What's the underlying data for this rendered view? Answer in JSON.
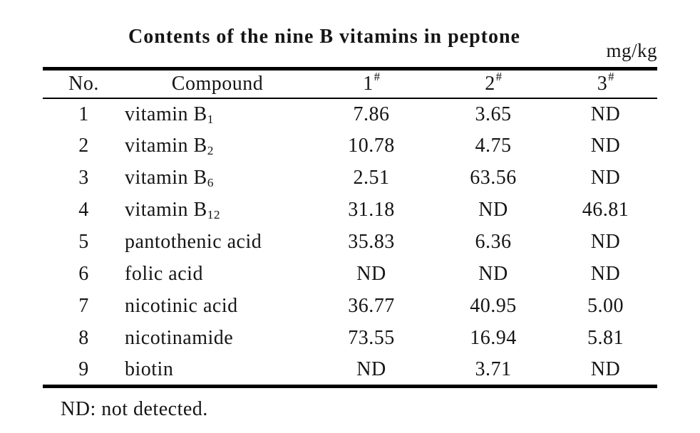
{
  "page": {
    "title": "Contents of the nine B vitamins in peptone",
    "unit": "mg/kg",
    "footnote": "ND: not detected."
  },
  "table": {
    "columns": [
      {
        "label": "No.",
        "sup": ""
      },
      {
        "label": "Compound",
        "sup": ""
      },
      {
        "label": "1",
        "sup": "#"
      },
      {
        "label": "2",
        "sup": "#"
      },
      {
        "label": "3",
        "sup": "#"
      }
    ],
    "rows": [
      {
        "no": "1",
        "compound": {
          "name": "vitamin B",
          "sub": "1"
        },
        "values": [
          "7.86",
          "3.65",
          "ND"
        ]
      },
      {
        "no": "2",
        "compound": {
          "name": "vitamin B",
          "sub": "2"
        },
        "values": [
          "10.78",
          "4.75",
          "ND"
        ]
      },
      {
        "no": "3",
        "compound": {
          "name": "vitamin B",
          "sub": "6"
        },
        "values": [
          "2.51",
          "63.56",
          "ND"
        ]
      },
      {
        "no": "4",
        "compound": {
          "name": "vitamin B",
          "sub": "12"
        },
        "values": [
          "31.18",
          "ND",
          "46.81"
        ]
      },
      {
        "no": "5",
        "compound": {
          "name": "pantothenic acid",
          "sub": ""
        },
        "values": [
          "35.83",
          "6.36",
          "ND"
        ]
      },
      {
        "no": "6",
        "compound": {
          "name": "folic acid",
          "sub": ""
        },
        "values": [
          "ND",
          "ND",
          "ND"
        ]
      },
      {
        "no": "7",
        "compound": {
          "name": "nicotinic acid",
          "sub": ""
        },
        "values": [
          "36.77",
          "40.95",
          "5.00"
        ]
      },
      {
        "no": "8",
        "compound": {
          "name": "nicotinamide",
          "sub": ""
        },
        "values": [
          "73.55",
          "16.94",
          "5.81"
        ]
      },
      {
        "no": "9",
        "compound": {
          "name": "biotin",
          "sub": ""
        },
        "values": [
          "ND",
          "3.71",
          "ND"
        ]
      }
    ]
  }
}
